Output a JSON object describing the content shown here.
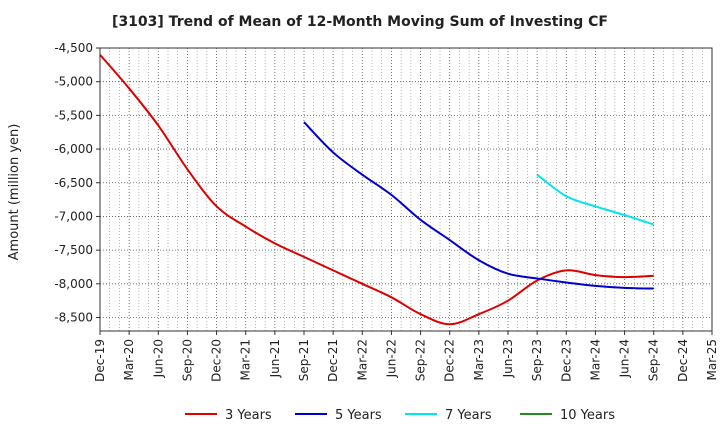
{
  "chart_data": {
    "type": "line",
    "title": "[3103]  Trend of Mean of 12-Month Moving Sum of Investing CF",
    "xlabel": "",
    "ylabel": "Amount (million yen)",
    "ylim": [
      -8700,
      -4500
    ],
    "yticks": [
      -4500,
      -5000,
      -5500,
      -6000,
      -6500,
      -7000,
      -7500,
      -8000,
      -8500
    ],
    "ytick_labels": [
      "-4,500",
      "-5,000",
      "-5,500",
      "-6,000",
      "-6,500",
      "-7,000",
      "-7,500",
      "-8,000",
      "-8,500"
    ],
    "categories": [
      "Dec-19",
      "Mar-20",
      "Jun-20",
      "Sep-20",
      "Dec-20",
      "Mar-21",
      "Jun-21",
      "Sep-21",
      "Dec-21",
      "Mar-22",
      "Jun-22",
      "Sep-22",
      "Dec-22",
      "Mar-23",
      "Jun-23",
      "Sep-23",
      "Dec-23",
      "Mar-24",
      "Jun-24",
      "Sep-24",
      "Dec-24",
      "Mar-25"
    ],
    "grid": true,
    "legend_position": "bottom",
    "series": [
      {
        "name": "3 Years",
        "color": "#dd0000",
        "points": [
          [
            0,
            -4600
          ],
          [
            1,
            -5100
          ],
          [
            2,
            -5650
          ],
          [
            3,
            -6300
          ],
          [
            4,
            -6850
          ],
          [
            5,
            -7150
          ],
          [
            6,
            -7400
          ],
          [
            7,
            -7600
          ],
          [
            8,
            -7800
          ],
          [
            9,
            -8000
          ],
          [
            10,
            -8200
          ],
          [
            11,
            -8450
          ],
          [
            12,
            -8600
          ],
          [
            13,
            -8450
          ],
          [
            14,
            -8250
          ],
          [
            15,
            -7950
          ],
          [
            16,
            -7800
          ],
          [
            17,
            -7870
          ],
          [
            18,
            -7900
          ],
          [
            19,
            -7880
          ]
        ]
      },
      {
        "name": "5 Years",
        "color": "#0000cc",
        "points": [
          [
            7,
            -5600
          ],
          [
            8,
            -6050
          ],
          [
            9,
            -6380
          ],
          [
            10,
            -6680
          ],
          [
            11,
            -7050
          ],
          [
            12,
            -7350
          ],
          [
            13,
            -7650
          ],
          [
            14,
            -7850
          ],
          [
            15,
            -7920
          ],
          [
            16,
            -7980
          ],
          [
            17,
            -8030
          ],
          [
            18,
            -8060
          ],
          [
            19,
            -8070
          ]
        ]
      },
      {
        "name": "7 Years",
        "color": "#00e5ee",
        "points": [
          [
            15,
            -6380
          ],
          [
            16,
            -6700
          ],
          [
            17,
            -6850
          ],
          [
            18,
            -6980
          ],
          [
            19,
            -7120
          ]
        ]
      },
      {
        "name": "10 Years",
        "color": "#228b22",
        "points": []
      }
    ]
  }
}
